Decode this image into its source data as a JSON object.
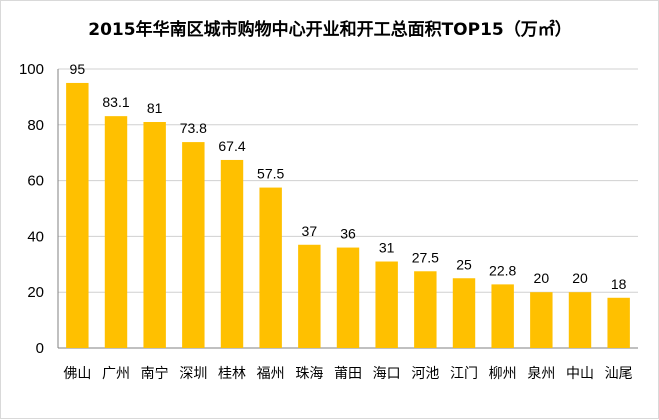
{
  "chart_data": {
    "type": "bar",
    "title": "2015年华南区城市购物中心开业和开工总面积TOP15（万㎡）",
    "categories": [
      "佛山",
      "广州",
      "南宁",
      "深圳",
      "桂林",
      "福州",
      "珠海",
      "莆田",
      "海口",
      "河池",
      "江门",
      "柳州",
      "泉州",
      "中山",
      "汕尾"
    ],
    "values": [
      95,
      83.1,
      81,
      73.8,
      67.4,
      57.5,
      37,
      36,
      31,
      27.5,
      25,
      22.8,
      20,
      20,
      18
    ],
    "value_labels": [
      "95",
      "83.1",
      "81",
      "73.8",
      "67.4",
      "57.5",
      "37",
      "36",
      "31",
      "27.5",
      "25",
      "22.8",
      "20",
      "20",
      "18"
    ],
    "ylim": [
      0,
      100
    ],
    "yticks": [
      0,
      20,
      40,
      60,
      80,
      100
    ],
    "ytick_labels": [
      "0",
      "20",
      "40",
      "60",
      "80",
      "100"
    ],
    "xlabel": "",
    "ylabel": "",
    "grid": true,
    "legend": "none",
    "colors": {
      "bar": "#FFC000",
      "grid": "#d0d0d0",
      "axis": "#808080"
    }
  }
}
